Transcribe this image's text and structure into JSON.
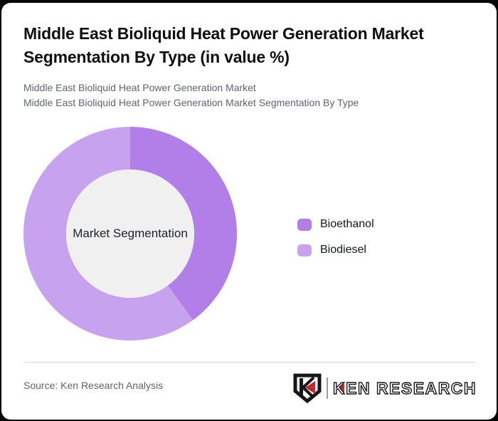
{
  "page": {
    "background_color": "#060606",
    "card_background_color": "#ffffff"
  },
  "header": {
    "title": "Middle East Bioliquid Heat Power Generation Market Segmentation By Type (in value %)",
    "subtitle_line1": "Middle East Bioliquid Heat Power Generation Market",
    "subtitle_line2": "Middle East Bioliquid Heat Power Generation Market Segmentation By Type"
  },
  "chart_data": {
    "type": "pie",
    "subtype": "donut",
    "title": "Middle East Bioliquid Heat Power Generation Market Segmentation By Type (in value %)",
    "center_label": "Market Segmentation",
    "categories": [
      "Bioethanol",
      "Biodiesel"
    ],
    "values": [
      40,
      60
    ],
    "unit": "percent of market value",
    "colors": [
      "#b27ee7",
      "#c7a3ef"
    ],
    "inner_circle_color": "#f0f0f0",
    "start_angle_deg": 0,
    "direction": "clockwise",
    "legend_position": "right",
    "outer_radius": 150,
    "inner_radius": 90
  },
  "footer": {
    "source": "Source: Ken Research Analysis",
    "logo_letter": "K",
    "logo_text": "KEN RESEARCH",
    "logo_accent_color": "#c9252c",
    "logo_dark_color": "#17171b"
  }
}
